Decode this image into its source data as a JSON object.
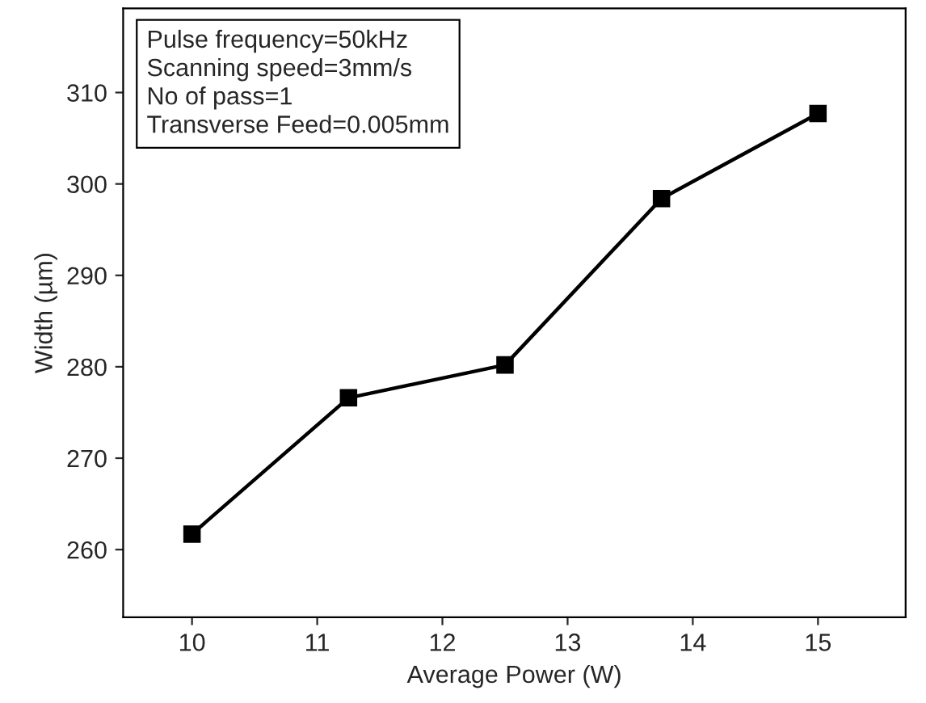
{
  "chart_data": {
    "type": "line",
    "xlabel": "Average Power (W)",
    "ylabel": "Width (µm)",
    "x": [
      10,
      11.25,
      12.5,
      13.75,
      15
    ],
    "series": [
      {
        "color": "#000000",
        "values": [
          261.7,
          276.6,
          280.2,
          298.4,
          307.7
        ]
      }
    ],
    "marker": "square",
    "line_style": "solid",
    "xlim": [
      9.45,
      15.7
    ],
    "xticks": [
      10,
      11,
      12,
      13,
      14,
      15
    ],
    "ylim": [
      252.6,
      319.2
    ],
    "yticks": [
      260,
      270,
      280,
      290,
      300,
      310
    ],
    "grid": false,
    "legend": false,
    "annotations": [
      "Pulse frequency=50kHz",
      "Scanning speed=3mm/s",
      "No of pass=1",
      "Transverse Feed=0.005mm"
    ]
  }
}
